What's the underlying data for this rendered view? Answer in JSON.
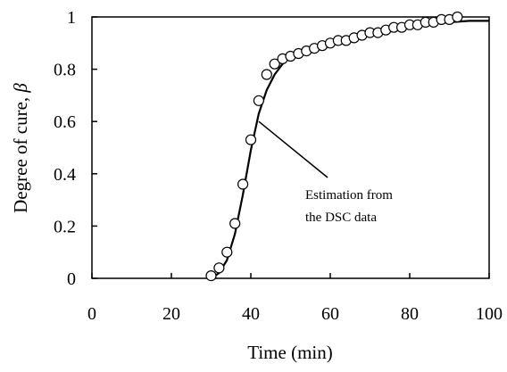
{
  "chart_data": {
    "type": "scatter",
    "xlabel": "Time (min)",
    "ylabel_text": "Degree of cure, ",
    "ylabel_symbol": "β",
    "xlim": [
      0,
      100
    ],
    "ylim": [
      0,
      1
    ],
    "xticks": [
      "0",
      "20",
      "40",
      "60",
      "80",
      "100"
    ],
    "yticks": [
      "0",
      "0.2",
      "0.4",
      "0.6",
      "0.8",
      "1"
    ],
    "grid": false,
    "annotation": {
      "line1": "Estimation from",
      "line2": "the DSC data",
      "points_to": [
        42,
        0.6
      ]
    },
    "series": [
      {
        "style": "markers-open-circle",
        "x": [
          30,
          32,
          34,
          36,
          38,
          40,
          42,
          44,
          46,
          48,
          50,
          52,
          54,
          56,
          58,
          60,
          62,
          64,
          66,
          68,
          70,
          72,
          74,
          76,
          78,
          80,
          82,
          84,
          86,
          88,
          90,
          92
        ],
        "y": [
          0.01,
          0.04,
          0.1,
          0.21,
          0.36,
          0.53,
          0.68,
          0.78,
          0.82,
          0.84,
          0.85,
          0.86,
          0.87,
          0.88,
          0.89,
          0.9,
          0.91,
          0.91,
          0.92,
          0.93,
          0.94,
          0.94,
          0.95,
          0.96,
          0.96,
          0.97,
          0.97,
          0.98,
          0.98,
          0.99,
          0.99,
          1.0
        ]
      },
      {
        "style": "line",
        "x": [
          30,
          32,
          34,
          36,
          38,
          40,
          42,
          44,
          46,
          48,
          50,
          55,
          60,
          65,
          70,
          75,
          80,
          85,
          90,
          95,
          100
        ],
        "y": [
          0.0,
          0.02,
          0.07,
          0.17,
          0.32,
          0.49,
          0.63,
          0.72,
          0.78,
          0.82,
          0.85,
          0.88,
          0.9,
          0.92,
          0.94,
          0.955,
          0.965,
          0.975,
          0.98,
          0.985,
          0.985
        ]
      }
    ]
  }
}
